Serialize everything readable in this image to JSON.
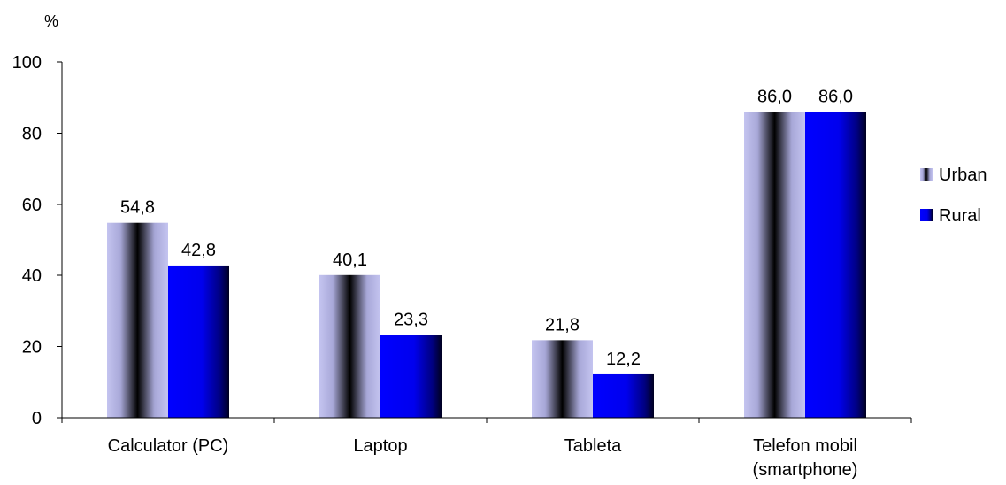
{
  "chart_data": {
    "type": "bar",
    "ylabel": "%",
    "categories": [
      "Calculator (PC)",
      "Laptop",
      "Tableta",
      "Telefon mobil (smartphone)"
    ],
    "category_lines": [
      [
        "Calculator (PC)"
      ],
      [
        "Laptop"
      ],
      [
        "Tableta"
      ],
      [
        "Telefon mobil",
        "(smartphone)"
      ]
    ],
    "series": [
      {
        "name": "Urban",
        "values": [
          54.8,
          40.1,
          21.8,
          86.0
        ],
        "value_labels": [
          "54,8",
          "40,1",
          "21,8",
          "86,0"
        ]
      },
      {
        "name": "Rural",
        "values": [
          42.8,
          23.3,
          12.2,
          86.0
        ],
        "value_labels": [
          "42,8",
          "23,3",
          "12,2",
          "86,0"
        ]
      }
    ],
    "ylim": [
      0,
      100
    ],
    "yticks": [
      0,
      20,
      40,
      60,
      80,
      100
    ],
    "ytick_labels": [
      "0",
      "20",
      "40",
      "60",
      "80",
      "100"
    ],
    "grid": false,
    "legend_position": "right",
    "colors": {
      "urban_light": "#c4c4f0",
      "urban_dark": "#000000",
      "rural_light": "#0000ff",
      "rural_dark": "#000020"
    }
  }
}
